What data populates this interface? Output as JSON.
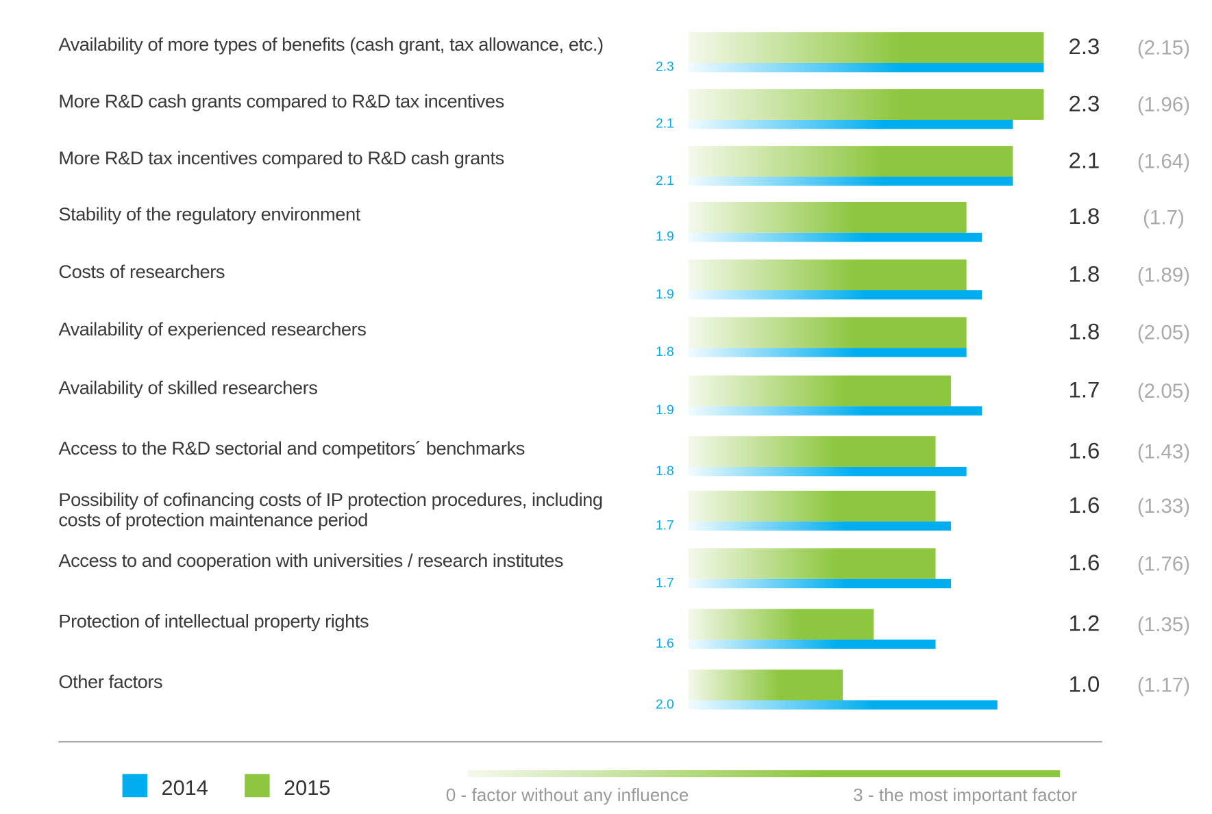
{
  "chart_data": {
    "type": "bar",
    "categories": [
      "Availability of more types of benefits (cash grant, tax allowance, etc.)",
      "More R&D cash grants compared to R&D tax incentives",
      "More R&D tax incentives compared to R&D cash grants",
      "Stability of the regulatory environment",
      "Costs of researchers",
      "Availability of experienced researchers",
      "Availability of skilled researchers",
      "Access to the R&D sectorial and competitors´ benchmarks",
      "Possibility of cofinancing costs of IP protection procedures, including\ncosts of protection maintenance period",
      "Access to and cooperation with universities / research institutes",
      "Protection of intellectual property rights",
      "Other factors"
    ],
    "series": [
      {
        "name": "2015",
        "color": "#8dc63f",
        "values": [
          2.3,
          2.3,
          2.1,
          1.8,
          1.8,
          1.8,
          1.7,
          1.6,
          1.6,
          1.6,
          1.2,
          1.0
        ],
        "value_labels": [
          "2.3",
          "2.3",
          "2.1",
          "1.8",
          "1.8",
          "1.8",
          "1.7",
          "1.6",
          "1.6",
          "1.6",
          "1.2",
          "1.0"
        ]
      },
      {
        "name": "2014",
        "color": "#00aeef",
        "values": [
          2.3,
          2.1,
          2.1,
          1.9,
          1.9,
          1.8,
          1.9,
          1.8,
          1.7,
          1.7,
          1.6,
          2.0
        ],
        "value_labels": [
          "2.3",
          "2.1",
          "2.1",
          "1.9",
          "1.9",
          "1.8",
          "1.9",
          "1.8",
          "1.7",
          "1.7",
          "1.6",
          "2.0"
        ]
      }
    ],
    "comparison_values": [
      2.15,
      1.96,
      1.64,
      1.7,
      1.89,
      2.05,
      2.05,
      1.43,
      1.33,
      1.76,
      1.35,
      1.17
    ],
    "comparison_labels": [
      "(2.15)",
      "(1.96)",
      "(1.64)",
      "(1.7)",
      "(1.89)",
      "(2.05)",
      "(2.05)",
      "(1.43)",
      "(1.33)",
      "(1.76)",
      "(1.35)",
      "(1.17)"
    ],
    "xlim": [
      0,
      3
    ],
    "scale_legend": [
      "0 - factor without any influence",
      "3 - the most important factor"
    ]
  }
}
